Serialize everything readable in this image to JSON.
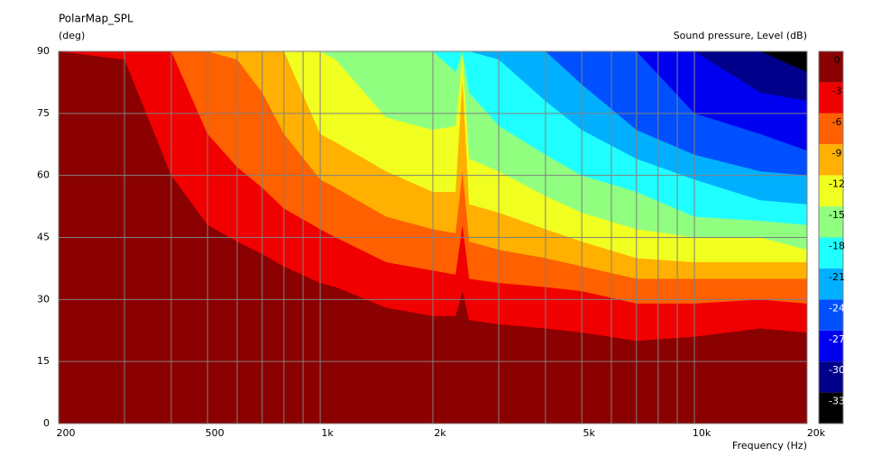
{
  "chart_data": {
    "type": "contour",
    "title": "PolarMap_SPL",
    "y_label": "(deg)",
    "colorbar_label": "Sound pressure, Level  (dB)",
    "x_label": "Frequency  (Hz)",
    "x_log": true,
    "grid": true,
    "xlim": [
      200,
      20000
    ],
    "ylim": [
      0,
      90
    ],
    "xticks": [
      200,
      500,
      {
        "value": 1000,
        "label": "1k"
      },
      {
        "value": 2000,
        "label": "2k"
      },
      {
        "value": 5000,
        "label": "5k"
      },
      {
        "value": 10000,
        "label": "10k"
      },
      {
        "value": 20000,
        "label": "20k"
      }
    ],
    "x_minor_ticks": [
      300,
      400,
      600,
      700,
      800,
      900,
      3000,
      4000,
      6000,
      7000,
      8000,
      9000
    ],
    "yticks": [
      0,
      15,
      30,
      45,
      60,
      75,
      90
    ],
    "levels": [
      0,
      -3,
      -6,
      -9,
      -12,
      -15,
      -18,
      -21,
      -24,
      -27,
      -30,
      -33
    ],
    "colors": [
      "#8b0000",
      "#f00000",
      "#ff6000",
      "#ffb000",
      "#f0ff20",
      "#90ff80",
      "#20ffff",
      "#00b0ff",
      "#0050ff",
      "#0000f0",
      "#00008b",
      "#000000"
    ],
    "x": [
      200,
      300,
      400,
      500,
      600,
      700,
      800,
      1000,
      1100,
      1500,
      2000,
      2300,
      2400,
      2500,
      3000,
      4000,
      5000,
      7000,
      10000,
      15000,
      20000
    ],
    "series": [
      {
        "values": [
          90,
          88,
          60,
          48,
          44,
          41,
          38,
          34,
          33,
          28,
          26,
          26,
          32,
          25,
          24,
          23,
          22,
          20,
          21,
          23,
          22
        ]
      },
      {
        "values": [
          90,
          90,
          90,
          70,
          62,
          57,
          52,
          47,
          45,
          39,
          37,
          36,
          48,
          35,
          34,
          33,
          32,
          29,
          29,
          30,
          29
        ]
      },
      {
        "values": [
          90,
          90,
          90,
          90,
          88,
          80,
          70,
          59,
          57,
          50,
          47,
          46,
          61,
          44,
          42,
          40,
          38,
          35,
          35,
          35,
          35
        ]
      },
      {
        "values": [
          90,
          90,
          90,
          90,
          90,
          90,
          90,
          70,
          68,
          61,
          56,
          56,
          83,
          53,
          51,
          47,
          44,
          40,
          39,
          39,
          39
        ]
      },
      {
        "values": [
          90,
          90,
          90,
          90,
          90,
          90,
          90,
          90,
          88,
          74,
          71,
          72,
          89,
          64,
          61,
          55,
          51,
          47,
          45,
          45,
          42
        ]
      },
      {
        "values": [
          90,
          90,
          90,
          90,
          90,
          90,
          90,
          90,
          90,
          90,
          90,
          85,
          90,
          80,
          72,
          65,
          60,
          56,
          50,
          49,
          48
        ]
      },
      {
        "values": [
          90,
          90,
          90,
          90,
          90,
          90,
          90,
          90,
          90,
          90,
          90,
          90,
          90,
          90,
          88,
          78,
          71,
          64,
          59,
          54,
          53
        ]
      },
      {
        "values": [
          90,
          90,
          90,
          90,
          90,
          90,
          90,
          90,
          90,
          90,
          90,
          90,
          90,
          90,
          90,
          90,
          82,
          71,
          65,
          61,
          60
        ]
      },
      {
        "values": [
          90,
          90,
          90,
          90,
          90,
          90,
          90,
          90,
          90,
          90,
          90,
          90,
          90,
          90,
          90,
          90,
          90,
          90,
          75,
          70,
          66
        ]
      },
      {
        "values": [
          90,
          90,
          90,
          90,
          90,
          90,
          90,
          90,
          90,
          90,
          90,
          90,
          90,
          90,
          90,
          90,
          90,
          90,
          90,
          80,
          78
        ]
      },
      {
        "values": [
          90,
          90,
          90,
          90,
          90,
          90,
          90,
          90,
          90,
          90,
          90,
          90,
          90,
          90,
          90,
          90,
          90,
          90,
          90,
          90,
          85
        ]
      }
    ]
  }
}
